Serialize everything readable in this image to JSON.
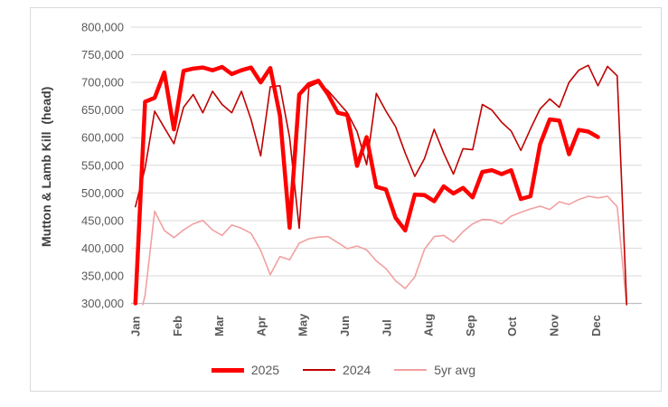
{
  "chart_data": {
    "type": "line",
    "title": "",
    "ylabel": "Mutton & Lamb Kill  (head)",
    "xlabel": "",
    "grid": true,
    "legend_position": "bottom",
    "y_axis": {
      "min": 300000,
      "max": 800000,
      "step": 50000,
      "tick_labels": [
        "300,000",
        "350,000",
        "400,000",
        "450,000",
        "500,000",
        "550,000",
        "600,000",
        "650,000",
        "700,000",
        "750,000",
        "800,000"
      ]
    },
    "x_axis": {
      "unit": "week",
      "weeks_per_year": 52,
      "month_labels": [
        "Jan",
        "Feb",
        "Mar",
        "Apr",
        "May",
        "Jun",
        "Jul",
        "Aug",
        "Sep",
        "Oct",
        "Nov",
        "Dec"
      ]
    },
    "series": [
      {
        "name": "2025",
        "color": "#FF0000",
        "width": 4.5,
        "values": [
          300000,
          665000,
          672000,
          718000,
          615000,
          721000,
          725000,
          727000,
          722000,
          728000,
          715000,
          722000,
          727000,
          700000,
          726000,
          640000,
          437000,
          678000,
          697000,
          703000,
          678000,
          645000,
          641000,
          549000,
          601000,
          511000,
          506000,
          455000,
          432000,
          497000,
          496000,
          485000,
          512000,
          499000,
          509000,
          492000,
          538000,
          541000,
          534000,
          541000,
          489000,
          494000,
          588000,
          633000,
          631000,
          570000,
          614000,
          611000,
          601000
        ]
      },
      {
        "name": "2024",
        "color": "#C00000",
        "width": 1.6,
        "values": [
          475000,
          545000,
          648000,
          618000,
          589000,
          655000,
          678000,
          645000,
          684000,
          660000,
          645000,
          684000,
          633000,
          567000,
          692000,
          694000,
          600000,
          436000,
          692000,
          700000,
          685000,
          665000,
          645000,
          611000,
          551000,
          680000,
          648000,
          620000,
          572000,
          530000,
          562000,
          615000,
          572000,
          534000,
          580000,
          578000,
          660000,
          650000,
          628000,
          612000,
          577000,
          616000,
          652000,
          670000,
          655000,
          700000,
          722000,
          731000,
          694000,
          729000,
          712000,
          290000
        ]
      },
      {
        "name": "5yr avg",
        "color": "#F2A0A0",
        "width": 1.6,
        "values": [
          240000,
          315000,
          467000,
          432000,
          419000,
          433000,
          444000,
          450000,
          433000,
          423000,
          442000,
          436000,
          427000,
          396000,
          352000,
          385000,
          379000,
          409000,
          417000,
          420000,
          421000,
          410000,
          399000,
          404000,
          397000,
          377000,
          363000,
          341000,
          327000,
          348000,
          398000,
          421000,
          423000,
          411000,
          430000,
          444000,
          452000,
          451000,
          444000,
          458000,
          465000,
          471000,
          476000,
          470000,
          484000,
          479000,
          488000,
          494000,
          491000,
          494000,
          475000,
          290000
        ]
      }
    ],
    "style": {
      "gridline_color": "#D9D9D9",
      "axis_line_color": "#BFBFBF",
      "tick_label_color": "#595959",
      "frame_border_color": "#D9D9D9"
    }
  }
}
